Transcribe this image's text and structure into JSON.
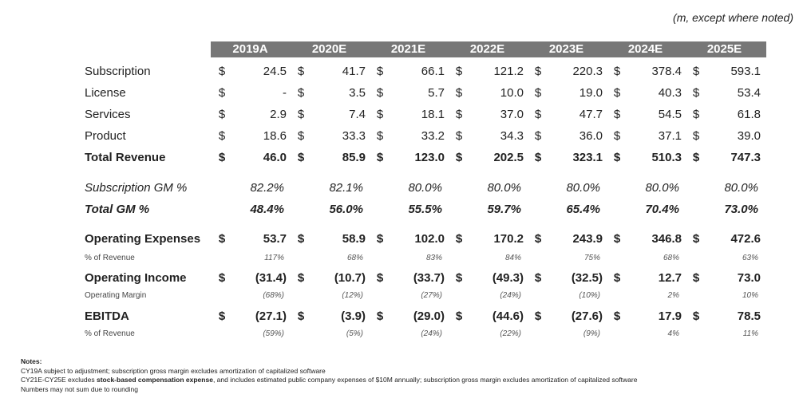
{
  "units_note": "(m, except where noted)",
  "years": [
    "2019A",
    "2020E",
    "2021E",
    "2022E",
    "2023E",
    "2024E",
    "2025E"
  ],
  "revenue_rows": [
    {
      "label": "Subscription",
      "currency": "$",
      "values": [
        "24.5",
        "41.7",
        "66.1",
        "121.2",
        "220.3",
        "378.4",
        "593.1"
      ]
    },
    {
      "label": "License",
      "currency": "$",
      "values": [
        "-",
        "3.5",
        "5.7",
        "10.0",
        "19.0",
        "40.3",
        "53.4"
      ]
    },
    {
      "label": "Services",
      "currency": "$",
      "values": [
        "2.9",
        "7.4",
        "18.1",
        "37.0",
        "47.7",
        "54.5",
        "61.8"
      ]
    },
    {
      "label": "Product",
      "currency": "$",
      "values": [
        "18.6",
        "33.3",
        "33.2",
        "34.3",
        "36.0",
        "37.1",
        "39.0"
      ]
    }
  ],
  "total_revenue": {
    "label": "Total Revenue",
    "currency": "$",
    "values": [
      "46.0",
      "85.9",
      "123.0",
      "202.5",
      "323.1",
      "510.3",
      "747.3"
    ]
  },
  "subscription_gm": {
    "label": "Subscription GM %",
    "values": [
      "82.2%",
      "82.1%",
      "80.0%",
      "80.0%",
      "80.0%",
      "80.0%",
      "80.0%"
    ]
  },
  "total_gm": {
    "label": "Total GM %",
    "values": [
      "48.4%",
      "56.0%",
      "55.5%",
      "59.7%",
      "65.4%",
      "70.4%",
      "73.0%"
    ]
  },
  "opex": {
    "label": "Operating Expenses",
    "currency": "$",
    "values": [
      "53.7",
      "58.9",
      "102.0",
      "170.2",
      "243.9",
      "346.8",
      "472.6"
    ]
  },
  "opex_pct": {
    "label": "% of Revenue",
    "values": [
      "117%",
      "68%",
      "83%",
      "84%",
      "75%",
      "68%",
      "63%"
    ]
  },
  "op_income": {
    "label": "Operating Income",
    "currency": "$",
    "values": [
      "(31.4)",
      "(10.7)",
      "(33.7)",
      "(49.3)",
      "(32.5)",
      "12.7",
      "73.0"
    ]
  },
  "op_margin": {
    "label": "Operating Margin",
    "values": [
      "(68%)",
      "(12%)",
      "(27%)",
      "(24%)",
      "(10%)",
      "2%",
      "10%"
    ]
  },
  "ebitda": {
    "label": "EBITDA",
    "currency": "$",
    "values": [
      "(27.1)",
      "(3.9)",
      "(29.0)",
      "(44.6)",
      "(27.6)",
      "17.9",
      "78.5"
    ]
  },
  "ebitda_pct": {
    "label": "% of Revenue",
    "values": [
      "(59%)",
      "(5%)",
      "(24%)",
      "(22%)",
      "(9%)",
      "4%",
      "11%"
    ]
  },
  "notes": {
    "title": "Notes:",
    "line1": "CY19A subject to adjustment; subscription gross margin excludes amortization of capitalized software",
    "line2_pre": "CY21E-CY25E excludes ",
    "line2_bold": "stock-based compensation expense",
    "line2_post": ", and includes estimated public company expenses of $10M annually; subscription gross margin excludes amortization of capitalized software",
    "line3": "Numbers may not sum due to rounding"
  }
}
